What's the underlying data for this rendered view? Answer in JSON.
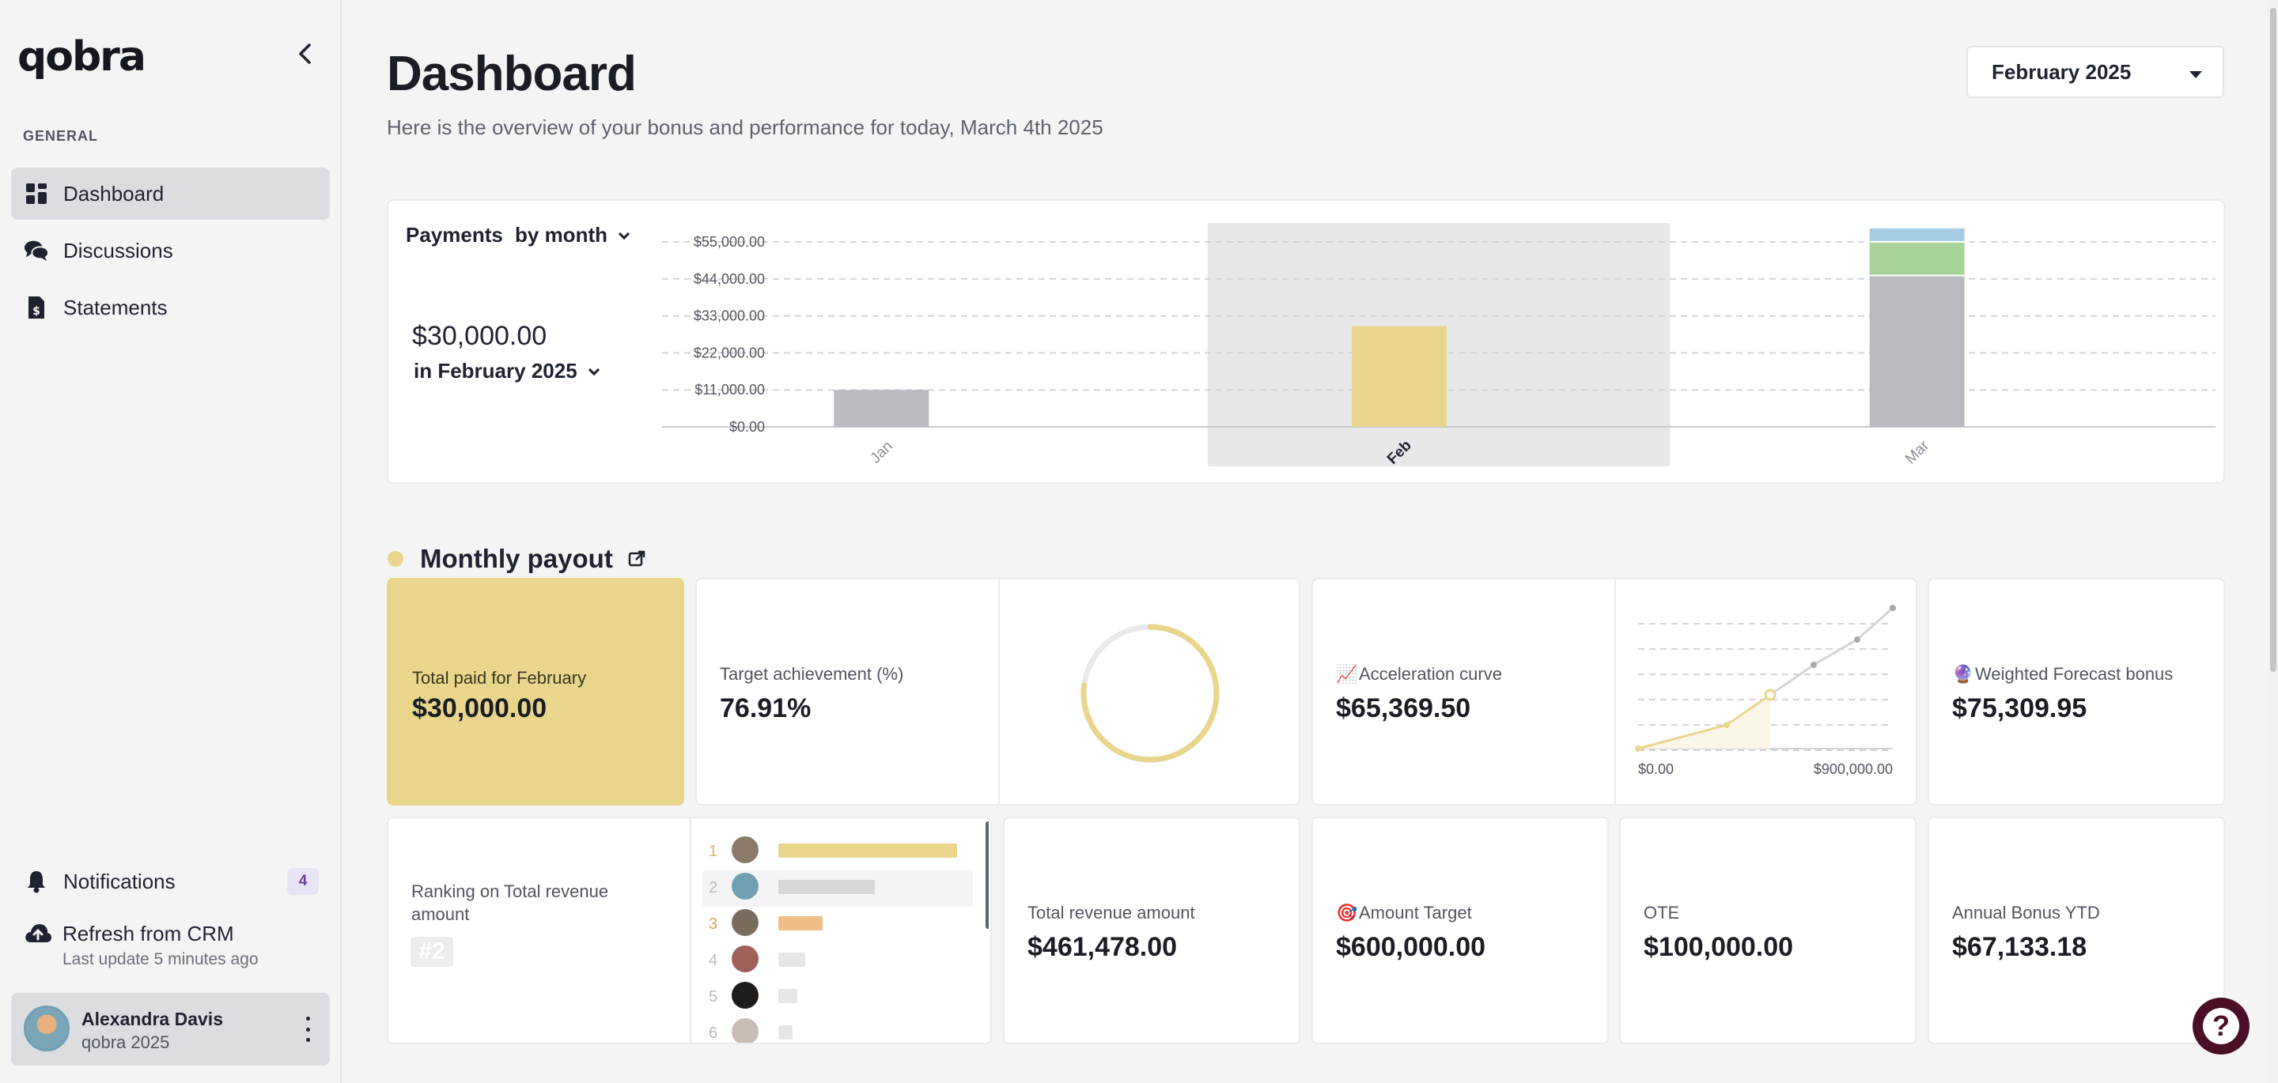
{
  "app": {
    "logo": "qobra"
  },
  "sidebar": {
    "section": "GENERAL",
    "items": [
      {
        "label": "Dashboard",
        "icon": "grid-icon",
        "active": true
      },
      {
        "label": "Discussions",
        "icon": "chat-icon",
        "active": false
      },
      {
        "label": "Statements",
        "icon": "statement-icon",
        "active": false
      }
    ],
    "notifications": {
      "label": "Notifications",
      "count": "4"
    },
    "refresh": {
      "label": "Refresh from CRM",
      "sub": "Last update 5 minutes ago"
    },
    "user": {
      "name": "Alexandra Davis",
      "org": "qobra 2025"
    }
  },
  "header": {
    "title": "Dashboard",
    "subtitle": "Here is the overview of your bonus and performance for today, March 4th 2025",
    "period": "February 2025"
  },
  "payments": {
    "label": "Payments",
    "grouping": "by month",
    "amount": "$30,000.00",
    "period_label": "in February 2025"
  },
  "chart_data": {
    "type": "bar",
    "categories": [
      "Jan",
      "Feb",
      "Mar"
    ],
    "highlighted_category": "Feb",
    "y_ticks": [
      "$0.00",
      "$11,000.00",
      "$22,000.00",
      "$33,000.00",
      "$44,000.00",
      "$55,000.00"
    ],
    "ylim": [
      0,
      55000
    ],
    "series": [
      {
        "values": [
          11000,
          0,
          45000
        ],
        "color": "#babbc0"
      },
      {
        "values": [
          0,
          30000,
          0
        ],
        "color": "#e9d68c"
      },
      {
        "values": [
          0,
          0,
          10000
        ],
        "color": "#a8d49a"
      },
      {
        "values": [
          0,
          0,
          4000
        ],
        "color": "#a6cde3"
      }
    ],
    "grid": true
  },
  "monthly_payout": {
    "title": "Monthly payout",
    "total_paid": {
      "label": "Total paid for February",
      "value": "$30,000.00"
    },
    "target_achievement": {
      "label": "Target achievement (%)",
      "value": "76.91%",
      "ratio": 0.7691
    },
    "acceleration": {
      "label": "Acceleration curve",
      "icon": "chart-up-icon",
      "value": "$65,369.50",
      "x_min": "$0.00",
      "x_max": "$900,000.00"
    },
    "forecast": {
      "label": "Weighted Forecast bonus",
      "icon": "crystal-ball-icon",
      "value": "$75,309.95"
    },
    "ranking": {
      "label": "Ranking on Total revenue amount",
      "rank": "#2",
      "ranks": [
        "1",
        "2",
        "3",
        "4",
        "5",
        "6"
      ]
    },
    "total_revenue": {
      "label": "Total revenue amount",
      "value": "$461,478.00"
    },
    "amount_target": {
      "label": "Amount Target",
      "icon": "target-icon",
      "value": "$600,000.00"
    },
    "ote": {
      "label": "OTE",
      "value": "$100,000.00"
    },
    "annual_bonus": {
      "label": "Annual Bonus YTD",
      "value": "$67,133.18"
    }
  },
  "help": {
    "label": "?"
  }
}
